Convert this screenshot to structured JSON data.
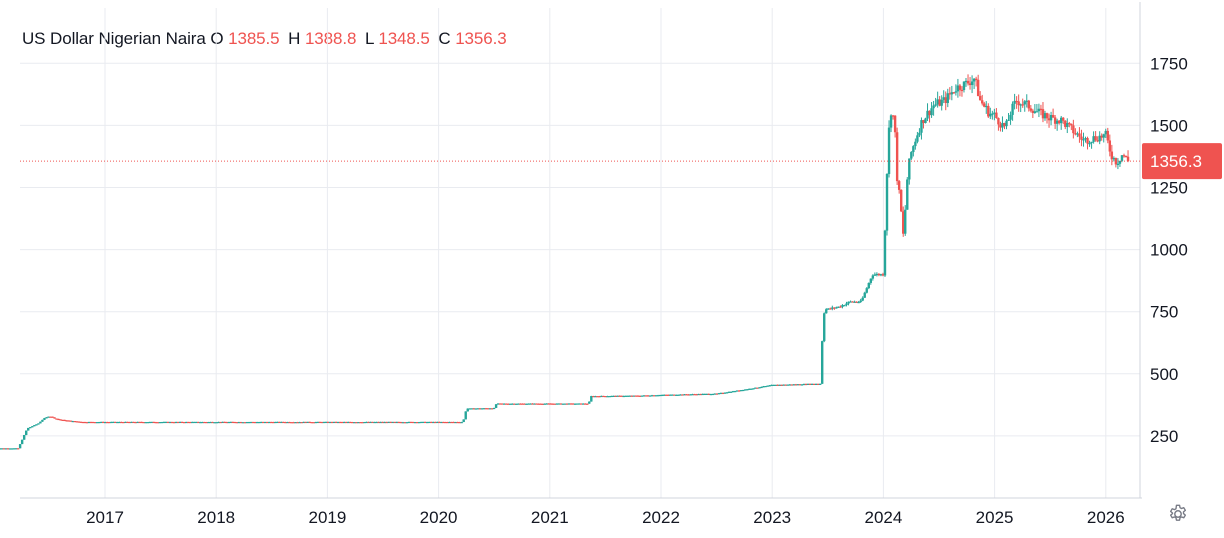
{
  "legend": {
    "symbol": "US Dollar Nigerian Naira",
    "open_label": "O",
    "open": "1385.5",
    "high_label": "H",
    "high": "1388.8",
    "low_label": "L",
    "low": "1348.5",
    "close_label": "C",
    "close": "1356.3"
  },
  "colors": {
    "up": "#26a69a",
    "down": "#ef5350",
    "grid": "#e9ebf0",
    "text": "#131722"
  },
  "settings_icon": "gear-icon",
  "chart_data": {
    "type": "candlestick",
    "title": "US Dollar Nigerian Naira",
    "ylim": [
      0,
      2000
    ],
    "xlim": [
      2016.0,
      2026.23
    ],
    "y_ticks": [
      250,
      500,
      750,
      1000,
      1250,
      1500,
      1750
    ],
    "y_tick_labels": [
      "250",
      "500",
      "750",
      "1000",
      "1250",
      "1500",
      "1750"
    ],
    "x_ticks": [
      2017,
      2018,
      2019,
      2020,
      2021,
      2022,
      2023,
      2024,
      2025,
      2026
    ],
    "x_tick_labels": [
      "2017",
      "2018",
      "2019",
      "2020",
      "2021",
      "2022",
      "2023",
      "2024",
      "2025",
      "2026"
    ],
    "last_price": 1356.3,
    "last_price_label": "1356.3",
    "grid": true,
    "series": [
      {
        "x": [
          2016.0,
          2016.2,
          2016.22,
          2016.3,
          2016.4,
          2016.45,
          2016.5,
          2016.55,
          2016.6,
          2016.7,
          2016.8,
          2017.0,
          2017.5,
          2018.0,
          2018.5,
          2019.0,
          2019.5,
          2020.0,
          2020.22,
          2020.25,
          2020.5,
          2020.52,
          2021.0,
          2021.35,
          2021.37,
          2021.8,
          2022.0,
          2022.5,
          2022.8,
          2023.0,
          2023.4,
          2023.44,
          2023.45,
          2023.47,
          2023.5,
          2023.6,
          2023.7,
          2023.8,
          2023.9,
          2023.95,
          2024.0,
          2024.03,
          2024.06,
          2024.1,
          2024.12,
          2024.15,
          2024.18,
          2024.22,
          2024.25,
          2024.3,
          2024.35,
          2024.45,
          2024.55,
          2024.65,
          2024.75,
          2024.82,
          2024.87,
          2024.95,
          2025.0,
          2025.05,
          2025.1,
          2025.15,
          2025.2,
          2025.3,
          2025.4,
          2025.5,
          2025.6,
          2025.7,
          2025.8,
          2025.9,
          2026.0,
          2026.05,
          2026.1,
          2026.15,
          2026.2
        ],
        "y": [
          200,
          200,
          200,
          280,
          300,
          320,
          330,
          320,
          315,
          310,
          306,
          306,
          306,
          306,
          306,
          306,
          306,
          306,
          306,
          360,
          362,
          380,
          380,
          380,
          410,
          412,
          415,
          420,
          440,
          455,
          460,
          460,
          640,
          760,
          760,
          770,
          790,
          790,
          900,
          900,
          900,
          1290,
          1570,
          1520,
          1300,
          1200,
          1050,
          1320,
          1390,
          1460,
          1520,
          1580,
          1600,
          1650,
          1670,
          1690,
          1600,
          1550,
          1540,
          1510,
          1490,
          1560,
          1600,
          1580,
          1550,
          1530,
          1520,
          1480,
          1440,
          1450,
          1460,
          1380,
          1350,
          1385,
          1356
        ]
      }
    ]
  }
}
